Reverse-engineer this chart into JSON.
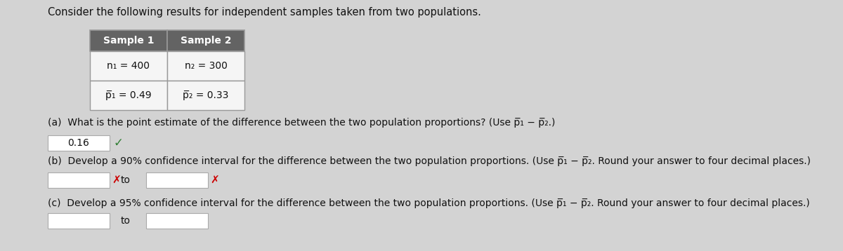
{
  "title": "Consider the following results for independent samples taken from two populations.",
  "table_headers": [
    "Sample 1",
    "Sample 2"
  ],
  "table_row1_c1": "n₁ = 400",
  "table_row1_c2": "n₂ = 300",
  "table_row2_c1": "p̅₁ = 0.49",
  "table_row2_c2": "p̅₂ = 0.33",
  "part_a_label": "(a)",
  "part_a_text": "What is the point estimate of the difference between the two population proportions? (Use p̅₁ − p̅₂.)",
  "part_a_answer": "0.16",
  "part_b_label": "(b)",
  "part_b_text": "Develop a 90% confidence interval for the difference between the two population proportions. (Use p̅₁ − p̅₂. Round your answer to four decimal places.)",
  "part_c_label": "(c)",
  "part_c_text": "Develop a 95% confidence interval for the difference between the two population proportions. (Use p̅₁ − p̅₂. Round your answer to four decimal places.)",
  "bg_color": "#d3d3d3",
  "table_header_bg": "#636363",
  "table_header_fg": "#ffffff",
  "table_cell_bg": "#f5f5f5",
  "table_border_color": "#999999",
  "text_color": "#111111",
  "box_bg": "#ffffff",
  "box_border": "#aaaaaa",
  "check_color": "#2e7d32",
  "x_color": "#cc0000",
  "font_size_title": 10.5,
  "font_size_table_hdr": 10,
  "font_size_table_cell": 10,
  "font_size_body": 10,
  "font_size_answer": 10
}
